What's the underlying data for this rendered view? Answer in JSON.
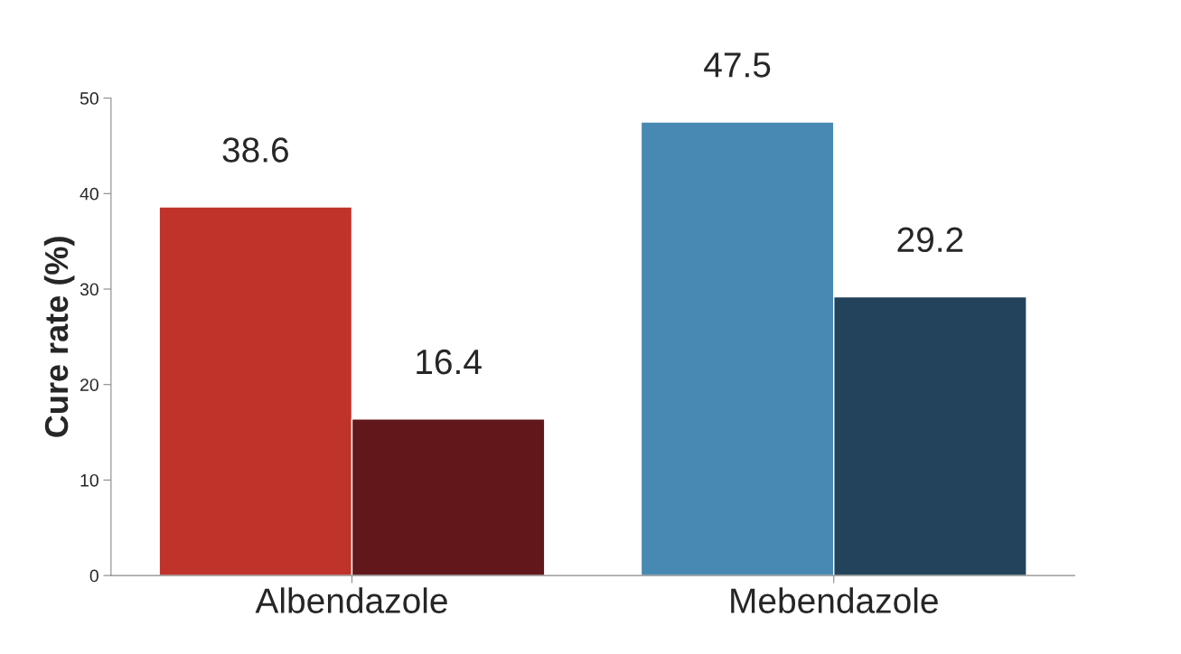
{
  "chart_data": {
    "type": "bar",
    "ylabel": "Cure rate (%)",
    "categories": [
      "Albendazole",
      "Mebendazole"
    ],
    "series": [
      {
        "colors": [
          "#c0332a",
          "#4889b3"
        ],
        "values": [
          38.6,
          47.5
        ]
      },
      {
        "colors": [
          "#62171a",
          "#22435b"
        ],
        "values": [
          16.4,
          29.2
        ]
      }
    ],
    "ylim": [
      0,
      50
    ],
    "yticks": [
      0,
      10,
      20,
      30,
      40,
      50
    ],
    "data_labels": true,
    "grid": false
  }
}
